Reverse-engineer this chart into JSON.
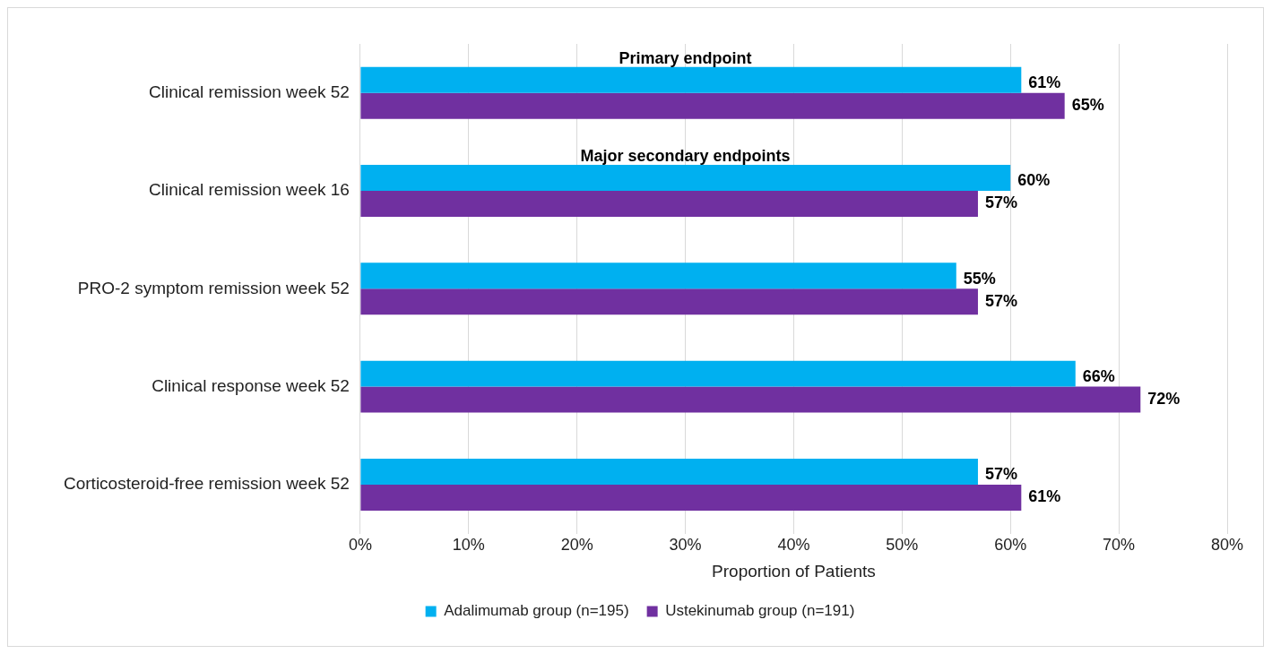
{
  "chart_data": {
    "type": "bar",
    "orientation": "horizontal",
    "xlabel": "Proportion of Patients",
    "categories": [
      "Clinical remission week 52",
      "Clinical remission week 16",
      "PRO-2 symptom remission week 52",
      "Clinical response week 52",
      "Corticosteroid-free remission week 52"
    ],
    "series": [
      {
        "name": "Adalimumab group (n=195)",
        "color": "#00b0f0",
        "values": [
          61,
          60,
          55,
          66,
          57
        ]
      },
      {
        "name": "Ustekinumab group (n=191)",
        "color": "#7030a0",
        "values": [
          65,
          57,
          57,
          72,
          61
        ]
      }
    ],
    "xlim": [
      0,
      80
    ],
    "xticks": [
      {
        "value": 0,
        "label": "0%"
      },
      {
        "value": 10,
        "label": "10%"
      },
      {
        "value": 20,
        "label": "20%"
      },
      {
        "value": 30,
        "label": "30%"
      },
      {
        "value": 40,
        "label": "40%"
      },
      {
        "value": 50,
        "label": "50%"
      },
      {
        "value": 60,
        "label": "60%"
      },
      {
        "value": 70,
        "label": "70%"
      },
      {
        "value": 80,
        "label": "80%"
      }
    ],
    "value_labels": [
      [
        "61%",
        "60%",
        "55%",
        "66%",
        "57%"
      ],
      [
        "65%",
        "57%",
        "57%",
        "72%",
        "61%"
      ]
    ],
    "annotations": [
      "Primary endpoint",
      "Major secondary endpoints"
    ],
    "grid": "x",
    "legend": "bottom"
  }
}
